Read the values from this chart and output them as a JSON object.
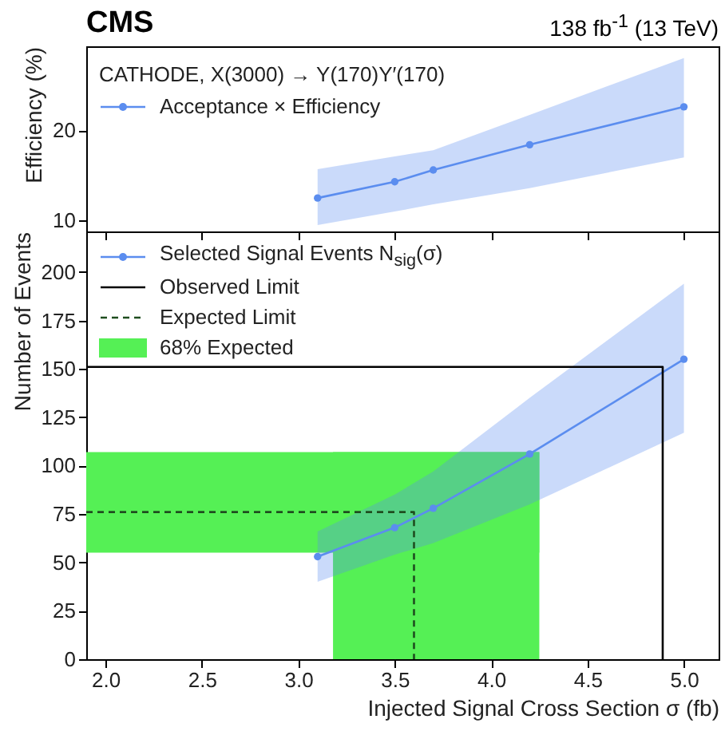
{
  "chart_data": [
    {
      "type": "line",
      "title": "CMS",
      "subtitle": "138 fb$^{-1}$ (13 TeV)",
      "ylabel": "Efficiency (%)",
      "annotations": [
        "CATHODE, X(3000) → Y(170)Y′(170)"
      ],
      "xlim": [
        1.9,
        5.18
      ],
      "xticks": [
        2,
        2.5,
        3,
        3.5,
        4,
        4.5,
        5
      ],
      "ylim": [
        8.8,
        29.3
      ],
      "yticks": [
        10,
        20
      ],
      "tick_labels": "y",
      "legend": "top left",
      "marker": "circle",
      "series": [
        {
          "name": "Acceptance × Efficiency",
          "color": "#5b8def",
          "x": [
            3.1,
            3.5,
            3.7,
            4.2,
            5.0
          ],
          "values": [
            12.5,
            14.3,
            15.6,
            18.4,
            22.6
          ],
          "lower": [
            9.5,
            11.0,
            11.8,
            13.6,
            17.0
          ],
          "upper": [
            15.7,
            17.1,
            17.8,
            21.7,
            28.0
          ]
        }
      ]
    },
    {
      "type": "line",
      "xlabel": "Injected Signal Cross Section σ (fb)",
      "ylabel": "Number of Events",
      "xlim": [
        1.9,
        5.18
      ],
      "xticks": [
        {
          "value": 2,
          "label": "2.0"
        },
        {
          "value": 2.5,
          "label": "2.5"
        },
        {
          "value": 3,
          "label": "3.0"
        },
        {
          "value": 3.5,
          "label": "3.5"
        },
        {
          "value": 4,
          "label": "4.0"
        },
        {
          "value": 4.5,
          "label": "4.5"
        },
        {
          "value": 5,
          "label": "5.0"
        }
      ],
      "ylim": [
        0,
        221
      ],
      "yticks": [
        0,
        25,
        50,
        75,
        100,
        125,
        150,
        175,
        200
      ],
      "legend": "top left",
      "marker": "circle",
      "series": [
        {
          "name": "Selected Signal Events N$_{sig}$(σ)",
          "color": "#5b8def",
          "x": [
            3.1,
            3.5,
            3.7,
            4.2,
            5.0
          ],
          "values": [
            53,
            68,
            78,
            106,
            155
          ],
          "lower": [
            40,
            54,
            60,
            80,
            117
          ],
          "upper": [
            66,
            85,
            97,
            135,
            194
          ]
        },
        {
          "name": "Observed Limit",
          "color": "#000000",
          "marker": "none",
          "x": [
            1.9,
            4.89,
            4.89
          ],
          "values": [
            151,
            151,
            0
          ]
        },
        {
          "name": "Expected Limit",
          "color": "#1f4d1f",
          "marker": "none",
          "line_style": "dashed",
          "x": [
            1.9,
            3.6,
            3.6
          ],
          "values": [
            76,
            76,
            0
          ]
        }
      ],
      "bands": [
        {
          "axis": "y",
          "from": 55,
          "to": 107,
          "label": "68% Expected",
          "color": "#55f055"
        },
        {
          "axis": "x",
          "from": 3.18,
          "to": 4.25,
          "color": "#55f055"
        }
      ]
    }
  ]
}
